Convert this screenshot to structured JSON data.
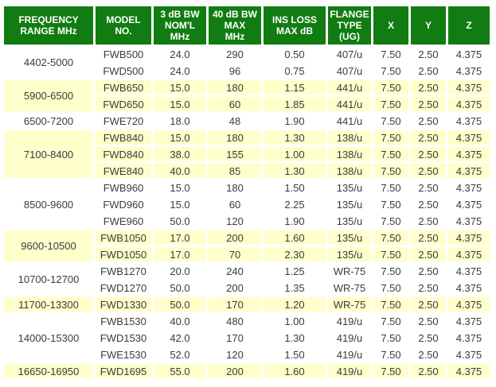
{
  "colors": {
    "header_bg": "#117c11",
    "header_text": "#ffffff",
    "group_shade_yellow": "#ffffcc",
    "group_shade_white": "#ffffff",
    "body_text": "#3b3b3b"
  },
  "table": {
    "headers": [
      "FREQUENCY\nRANGE MHz",
      "MODEL\nNO.",
      "3 dB BW\nNOM'L\nMHz",
      "40 dB BW\nMAX\nMHz",
      "INS LOSS\nMAX dB",
      "FLANGE\nTYPE\n(UG)",
      "X",
      "Y",
      "Z"
    ],
    "col_keys": [
      "frequency-range",
      "model-no",
      "bw-3db-noml-mhz",
      "bw-40db-max-mhz",
      "ins-loss-max-db",
      "flange-type-ug",
      "x",
      "y",
      "z"
    ],
    "groups": [
      {
        "range": "4402-5000",
        "shade": "white",
        "rows": [
          [
            "FWB500",
            "24.0",
            "290",
            "0.50",
            "407/u",
            "7.50",
            "2.50",
            "4.375"
          ],
          [
            "FWD500",
            "24.0",
            "96",
            "0.75",
            "407/u",
            "7.50",
            "2.50",
            "4.375"
          ]
        ]
      },
      {
        "range": "5900-6500",
        "shade": "yellow",
        "rows": [
          [
            "FWB650",
            "15.0",
            "180",
            "1.15",
            "441/u",
            "7.50",
            "2.50",
            "4.375"
          ],
          [
            "FWD650",
            "15.0",
            "60",
            "1.85",
            "441/u",
            "7.50",
            "2.50",
            "4.375"
          ]
        ]
      },
      {
        "range": "6500-7200",
        "shade": "white",
        "rows": [
          [
            "FWE720",
            "18.0",
            "48",
            "1.90",
            "441/u",
            "7.50",
            "2.50",
            "4.375"
          ]
        ]
      },
      {
        "range": "7100-8400",
        "shade": "yellow",
        "rows": [
          [
            "FWB840",
            "15.0",
            "180",
            "1.30",
            "138/u",
            "7.50",
            "2.50",
            "4.375"
          ],
          [
            "FWD840",
            "38.0",
            "155",
            "1.00",
            "138/u",
            "7.50",
            "2.50",
            "4.375"
          ],
          [
            "FWE840",
            "40.0",
            "85",
            "1.30",
            "138/u",
            "7.50",
            "2.50",
            "4.375"
          ]
        ]
      },
      {
        "range": "8500-9600",
        "shade": "white",
        "rows": [
          [
            "FWB960",
            "15.0",
            "180",
            "1.50",
            "135/u",
            "7.50",
            "2.50",
            "4.375"
          ],
          [
            "FWD960",
            "15.0",
            "60",
            "2.25",
            "135/u",
            "7.50",
            "2.50",
            "4.375"
          ],
          [
            "FWE960",
            "50.0",
            "120",
            "1.90",
            "135/u",
            "7.50",
            "2.50",
            "4.375"
          ]
        ]
      },
      {
        "range": "9600-10500",
        "shade": "yellow",
        "rows": [
          [
            "FWB1050",
            "17.0",
            "200",
            "1.60",
            "135/u",
            "7.50",
            "2.50",
            "4.375"
          ],
          [
            "FWD1050",
            "17.0",
            "70",
            "2.30",
            "135/u",
            "7.50",
            "2.50",
            "4.375"
          ]
        ]
      },
      {
        "range": "10700-12700",
        "shade": "white",
        "rows": [
          [
            "FWB1270",
            "20.0",
            "240",
            "1.25",
            "WR-75",
            "7.50",
            "2.50",
            "4.375"
          ],
          [
            "FWD1270",
            "50.0",
            "200",
            "1.35",
            "WR-75",
            "7.50",
            "2.50",
            "4.375"
          ]
        ]
      },
      {
        "range": "11700-13300",
        "shade": "yellow",
        "rows": [
          [
            "FWD1330",
            "50.0",
            "170",
            "1.20",
            "WR-75",
            "7.50",
            "2.50",
            "4.375"
          ]
        ]
      },
      {
        "range": "14000-15300",
        "shade": "white",
        "rows": [
          [
            "FWB1530",
            "40.0",
            "480",
            "1.00",
            "419/u",
            "7.50",
            "2.50",
            "4.375"
          ],
          [
            "FWD1530",
            "42.0",
            "170",
            "1.30",
            "419/u",
            "7.50",
            "2.50",
            "4.375"
          ],
          [
            "FWE1530",
            "52.0",
            "120",
            "1.50",
            "419/u",
            "7.50",
            "2.50",
            "4.375"
          ]
        ]
      },
      {
        "range": "16650-16950",
        "shade": "yellow",
        "rows": [
          [
            "FWD1695",
            "55.0",
            "200",
            "1.60",
            "419/u",
            "7.50",
            "2.50",
            "4.375"
          ]
        ]
      }
    ]
  }
}
